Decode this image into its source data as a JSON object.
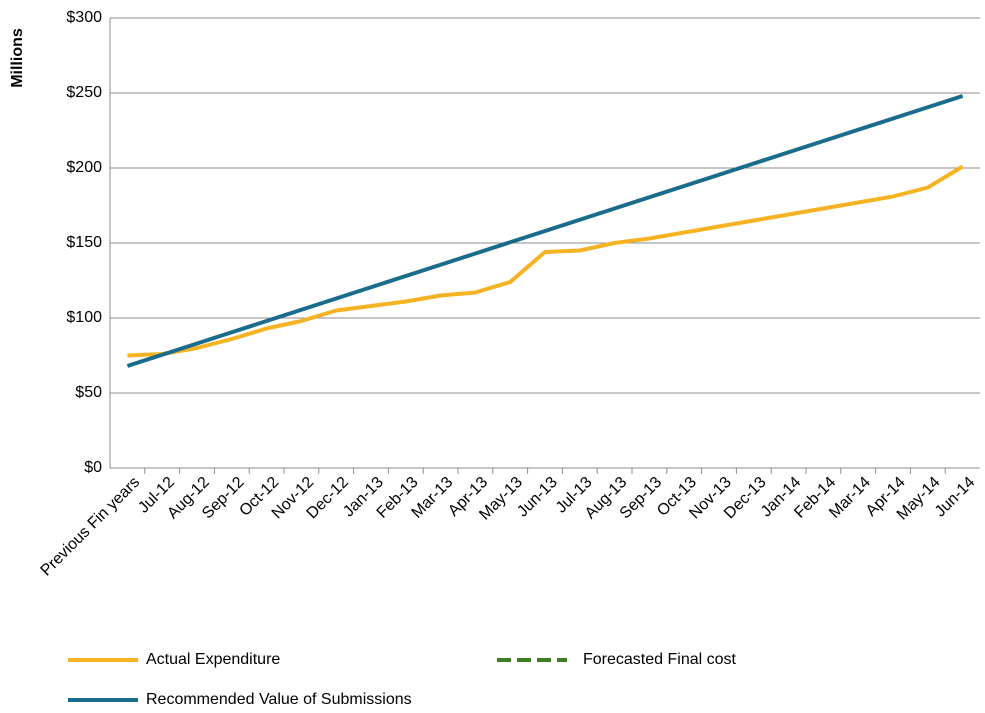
{
  "chart_data": {
    "type": "line",
    "y_label": "Millions",
    "categories": [
      "Previous Fin years",
      "Jul-12",
      "Aug-12",
      "Sep-12",
      "Oct-12",
      "Nov-12",
      "Dec-12",
      "Jan-13",
      "Feb-13",
      "Mar-13",
      "Apr-13",
      "May-13",
      "Jun-13",
      "Jul-13",
      "Aug-13",
      "Sep-13",
      "Oct-13",
      "Nov-13",
      "Dec-13",
      "Jan-14",
      "Feb-14",
      "Mar-14",
      "Apr-14",
      "May-14",
      "Jun-14"
    ],
    "series": [
      {
        "name": "Actual Expenditure",
        "color": "#f5b323",
        "values": [
          75,
          76,
          80,
          86,
          93,
          98,
          105,
          108,
          111,
          115,
          117,
          124,
          144,
          145,
          150,
          153,
          157,
          161,
          165,
          169,
          173,
          177,
          181,
          187,
          201
        ]
      },
      {
        "name": "Forecasted Final cost",
        "color": "#3a7d22",
        "dashed": true,
        "values": [
          null,
          null,
          null,
          null,
          null,
          null,
          null,
          null,
          null,
          null,
          null,
          null,
          null,
          null,
          null,
          null,
          null,
          null,
          null,
          null,
          null,
          null,
          null,
          null,
          null
        ]
      },
      {
        "name": "Recommended Value of Submissions",
        "color": "#1a6b8c",
        "values": [
          68,
          75.5,
          83,
          90.5,
          98,
          105.5,
          113,
          120.5,
          128,
          135.5,
          143,
          150.5,
          158,
          165.5,
          173,
          180.5,
          188,
          195.5,
          203,
          210.5,
          218,
          225.5,
          233,
          240.5,
          248
        ]
      }
    ],
    "ylim": [
      0,
      300
    ],
    "yticks": [
      {
        "value": 0,
        "label": "$0"
      },
      {
        "value": 50,
        "label": "$50"
      },
      {
        "value": 100,
        "label": "$100"
      },
      {
        "value": 150,
        "label": "$150"
      },
      {
        "value": 200,
        "label": "$200"
      },
      {
        "value": 250,
        "label": "$250"
      },
      {
        "value": 300,
        "label": "$300"
      }
    ],
    "grid": true,
    "legend": "bottom"
  }
}
